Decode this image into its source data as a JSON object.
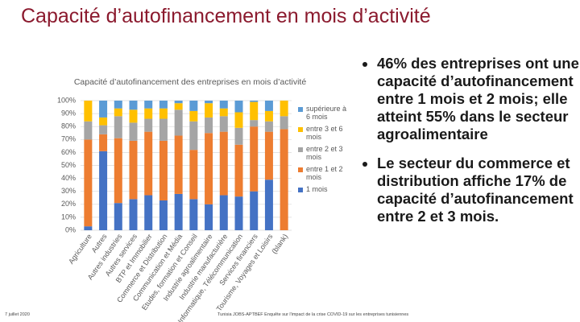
{
  "slide": {
    "title": "Capacité d’autofinancement en mois d’activité",
    "bullets": [
      "46% des entreprises ont une capacité d’autofinancement entre 1 mois et 2 mois; elle atteint 55% dans le secteur agroalimentaire",
      "Le secteur du commerce et distribution affiche 17% de capacité d’autofinancement entre 2 et 3 mois."
    ],
    "date": "7 juillet 2020",
    "source": "Tunisia JOBS-APTBEF Enquête sur l'impact de la crise COVID-19 sur les entreprises tunisiennes"
  },
  "chart_data": {
    "type": "stacked_bar",
    "title": "Capacité d’autofinancement des entreprises en mois d’activité",
    "categories": [
      "Agriculture",
      "Autres",
      "Autres industries",
      "Autres services",
      "BTP et Immobilier",
      "Commerce et Distribution",
      "Communication et Média",
      "Etudes, formation et Conseil",
      "Industrie agroalimentaire",
      "Industrie manufacturière",
      "Informatique, Télécommunication",
      "Services financiers",
      "Tourisme, Voyages et Loisirs",
      "(blank)"
    ],
    "series": [
      {
        "name": "1 mois",
        "color": "#4472c4",
        "values": [
          3,
          61,
          21,
          24,
          27,
          23,
          28,
          24,
          20,
          27,
          26,
          30,
          39,
          0
        ]
      },
      {
        "name": "entre 1 et 2 mois",
        "color": "#ed7d31",
        "values": [
          67,
          13,
          50,
          45,
          49,
          46,
          45,
          38,
          55,
          49,
          40,
          50,
          37,
          78
        ]
      },
      {
        "name": "entre 2 et 3 mois",
        "color": "#a5a5a5",
        "values": [
          14,
          7,
          17,
          14,
          10,
          17,
          20,
          22,
          12,
          12,
          13,
          5,
          8,
          10
        ]
      },
      {
        "name": "entre 3 et 6 mois",
        "color": "#ffc000",
        "values": [
          16,
          6,
          6,
          10,
          8,
          8,
          5,
          8,
          11,
          6,
          12,
          14,
          8,
          12
        ]
      },
      {
        "name": "supérieure à 6 mois",
        "color": "#5b9bd5",
        "values": [
          0,
          13,
          6,
          7,
          6,
          6,
          2,
          8,
          2,
          6,
          9,
          1,
          8,
          0
        ]
      }
    ],
    "ylim": [
      0,
      100
    ],
    "yticks": [
      {
        "value": 0,
        "label": "0%"
      },
      {
        "value": 10,
        "label": "10%"
      },
      {
        "value": 20,
        "label": "20%"
      },
      {
        "value": 30,
        "label": "30%"
      },
      {
        "value": 40,
        "label": "40%"
      },
      {
        "value": 50,
        "label": "50%"
      },
      {
        "value": 60,
        "label": "60%"
      },
      {
        "value": 70,
        "label": "70%"
      },
      {
        "value": 80,
        "label": "80%"
      },
      {
        "value": 90,
        "label": "90%"
      },
      {
        "value": 100,
        "label": "100%"
      }
    ],
    "grid": true
  }
}
